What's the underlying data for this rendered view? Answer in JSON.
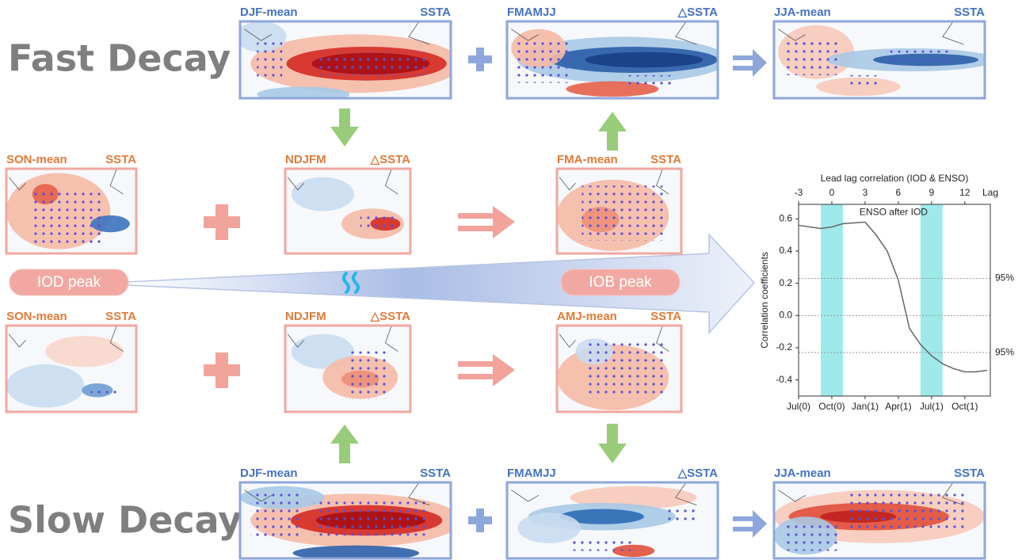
{
  "fast_decay": {
    "label": "Fast Decay",
    "panels": [
      {
        "season": "DJF-mean",
        "field": "SSTA"
      },
      {
        "season": "FMAMJJ",
        "field": "△SSTA"
      },
      {
        "season": "JJA-mean",
        "field": "SSTA"
      }
    ]
  },
  "iod_upper": {
    "panels": [
      {
        "season": "SON-mean",
        "field": "SSTA"
      },
      {
        "season": "NDJFM",
        "field": "△SSTA"
      },
      {
        "season": "FMA-mean",
        "field": "SSTA"
      }
    ]
  },
  "iod_lower": {
    "panels": [
      {
        "season": "SON-mean",
        "field": "SSTA"
      },
      {
        "season": "NDJFM",
        "field": "△SSTA"
      },
      {
        "season": "AMJ-mean",
        "field": "SSTA"
      }
    ]
  },
  "slow_decay": {
    "label": "Slow Decay",
    "panels": [
      {
        "season": "DJF-mean",
        "field": "SSTA"
      },
      {
        "season": "FMAMJJ",
        "field": "△SSTA"
      },
      {
        "season": "JJA-mean",
        "field": "SSTA"
      }
    ]
  },
  "iod_peak": "IOD peak",
  "iob_peak": "IOB peak",
  "chart_data": {
    "type": "line",
    "title": "Lead lag correlation (IOD & ENSO)",
    "x_label": "Lag",
    "y_label": "Correlation coefficients",
    "annotation": "ENSO after IOD",
    "x": [
      -3,
      -2,
      -1,
      0,
      1,
      2,
      3,
      4,
      5,
      6,
      7,
      8,
      9,
      10,
      11,
      12,
      13,
      14
    ],
    "values": [
      0.56,
      0.55,
      0.54,
      0.55,
      0.57,
      0.575,
      0.58,
      0.5,
      0.4,
      0.22,
      -0.08,
      -0.18,
      -0.25,
      -0.3,
      -0.33,
      -0.35,
      -0.35,
      -0.34
    ],
    "color": "#666666",
    "xlim": [
      -3,
      14.3
    ],
    "ylim": [
      -0.5,
      0.69
    ],
    "xticks": [
      -3,
      0,
      3,
      6,
      9,
      12
    ],
    "xticks_bottom": [
      {
        "value": -3,
        "label": "Jul(0)"
      },
      {
        "value": 0,
        "label": "Oct(0)"
      },
      {
        "value": 3,
        "label": "Jan(1)"
      },
      {
        "value": 6,
        "label": "Apr(1)"
      },
      {
        "value": 9,
        "label": "Jul(1)"
      },
      {
        "value": 12,
        "label": "Oct(1)"
      }
    ],
    "yticks": [
      0.6,
      0.4,
      0.2,
      {
        "value": 0,
        "label": "0.0"
      },
      -0.2,
      -0.4
    ],
    "significance": [
      {
        "value": 0.23,
        "label": "95%"
      },
      {
        "value": -0.23,
        "label": "95%"
      }
    ],
    "shaded": [
      [
        -1,
        1
      ],
      [
        8,
        10
      ]
    ],
    "shade_color": "#9eeaea"
  }
}
